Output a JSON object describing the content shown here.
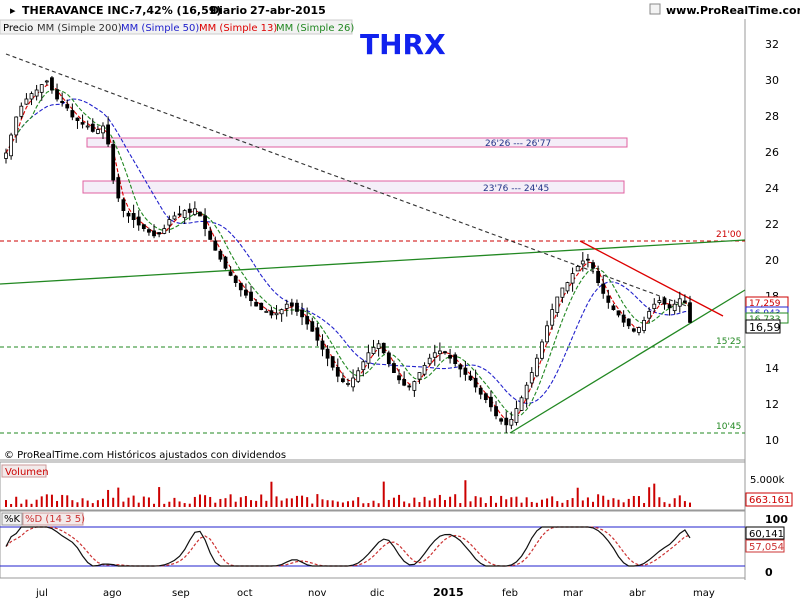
{
  "header": {
    "name": "THERAVANCE INC.",
    "change": "-7,42% (16,59)",
    "period": "Diario",
    "date": "27-abr-2015",
    "site": "www.ProRealTime.com",
    "close_icon": "close-icon",
    "pin_icon": "pin-icon"
  },
  "legend": {
    "precio": "Precio",
    "mm200": "MM (Simple 200)",
    "mm50": "MM (Simple 50)",
    "mm13": "MM (Simple 13)",
    "mm26": "MM (Simple 26)"
  },
  "ticker": "THRX",
  "copyright": "© ProRealTime.com  Históricos ajustados con dividendos",
  "colors": {
    "price": "#000000",
    "mm200": "#333333",
    "mm50": "#2222cc",
    "mm13": "#dd0000",
    "mm26": "#228822",
    "ticker": "#1122ee",
    "volume": "#cc0000",
    "k": "#111111",
    "d": "#cc3333"
  },
  "chart_data": [
    {
      "type": "candlestick",
      "title": "THRX",
      "ylim": [
        10,
        33
      ],
      "y_ticks": [
        "32",
        "30",
        "28",
        "26",
        "24",
        "22",
        "20",
        "18",
        "16",
        "14",
        "12",
        "10"
      ],
      "x_ticks": [
        "jul",
        "ago",
        "sep",
        "oct",
        "nov",
        "dic",
        "2015",
        "feb",
        "mar",
        "abr",
        "may"
      ],
      "last_price": "16,59",
      "hidden_price_labels": [
        "17,259",
        "16,943",
        "16,733"
      ],
      "series_close": [
        26,
        27,
        28,
        28.6,
        29,
        29.3,
        29.5,
        29.8,
        30,
        29.5,
        29,
        28.8,
        28.5,
        28,
        27.8,
        27.6,
        27.5,
        27.2,
        27.3,
        27.5,
        26.5,
        24.5,
        23.5,
        22.8,
        22.5,
        22.3,
        22,
        21.8,
        21.6,
        21.4,
        21.5,
        21.8,
        22.3,
        22.5,
        22.6,
        22.8,
        22.7,
        22.9,
        22.5,
        21.8,
        21.2,
        20.6,
        20.1,
        19.6,
        19.2,
        18.8,
        18.4,
        18.1,
        17.8,
        17.5,
        17.3,
        17.2,
        17,
        17.1,
        17.3,
        17.6,
        17.5,
        17.2,
        16.9,
        16.5,
        16.1,
        15.6,
        15.1,
        14.6,
        14.1,
        13.6,
        13.3,
        13.2,
        13.5,
        13.9,
        14.4,
        14.9,
        15.2,
        15.4,
        14.9,
        14.3,
        13.8,
        13.4,
        13.1,
        13,
        13.3,
        13.8,
        14.2,
        14.6,
        14.9,
        15,
        14.9,
        14.6,
        14.3,
        14,
        13.7,
        13.4,
        13,
        12.6,
        12.3,
        11.9,
        11.4,
        11.1,
        10.9,
        11.2,
        11.8,
        12.4,
        13.1,
        13.8,
        14.6,
        15.5,
        16.4,
        17.3,
        18,
        18.5,
        18.8,
        19.3,
        19.7,
        20,
        20.1,
        19.6,
        18.8,
        18.2,
        17.7,
        17.3,
        17,
        16.6,
        16.4,
        16.1,
        16.3,
        16.7,
        17.2,
        17.6,
        17.8,
        17.6,
        17.4,
        17.6,
        17.9,
        17.7,
        16.59
      ],
      "horizontal_levels": [
        {
          "value": 21.0,
          "label": "21'00",
          "color": "#cc0000"
        },
        {
          "value": 15.25,
          "label": "15'25",
          "color": "#228822"
        },
        {
          "value": 10.45,
          "label": "10'45",
          "color": "#228822"
        }
      ],
      "zones": [
        {
          "from": 26.26,
          "to": 26.77,
          "label": "26'26 --- 26'77"
        },
        {
          "from": 23.76,
          "to": 24.45,
          "label": "23'76 --- 24'45"
        }
      ],
      "trendlines": [
        {
          "name": "green-long",
          "from": [
            0,
            18.7
          ],
          "to": [
            1,
            21.2
          ]
        },
        {
          "name": "green-support",
          "from": [
            0.64,
            10.45
          ],
          "to": [
            1,
            17.6
          ]
        },
        {
          "name": "red-resistance",
          "from": [
            0.72,
            21.0
          ],
          "to": [
            0.93,
            17.6
          ]
        }
      ]
    },
    {
      "type": "bar",
      "title": "Volumen",
      "y_tick": "5.000k",
      "last_value": "663.161"
    },
    {
      "type": "line",
      "title": "%K",
      "series": [
        {
          "name": "%K"
        },
        {
          "name": "%D (14 3 5)"
        }
      ],
      "ylim": [
        0,
        100
      ],
      "y_ticks": [
        "100",
        "0"
      ],
      "k_value": "60,141",
      "d_value": "57,054"
    }
  ]
}
